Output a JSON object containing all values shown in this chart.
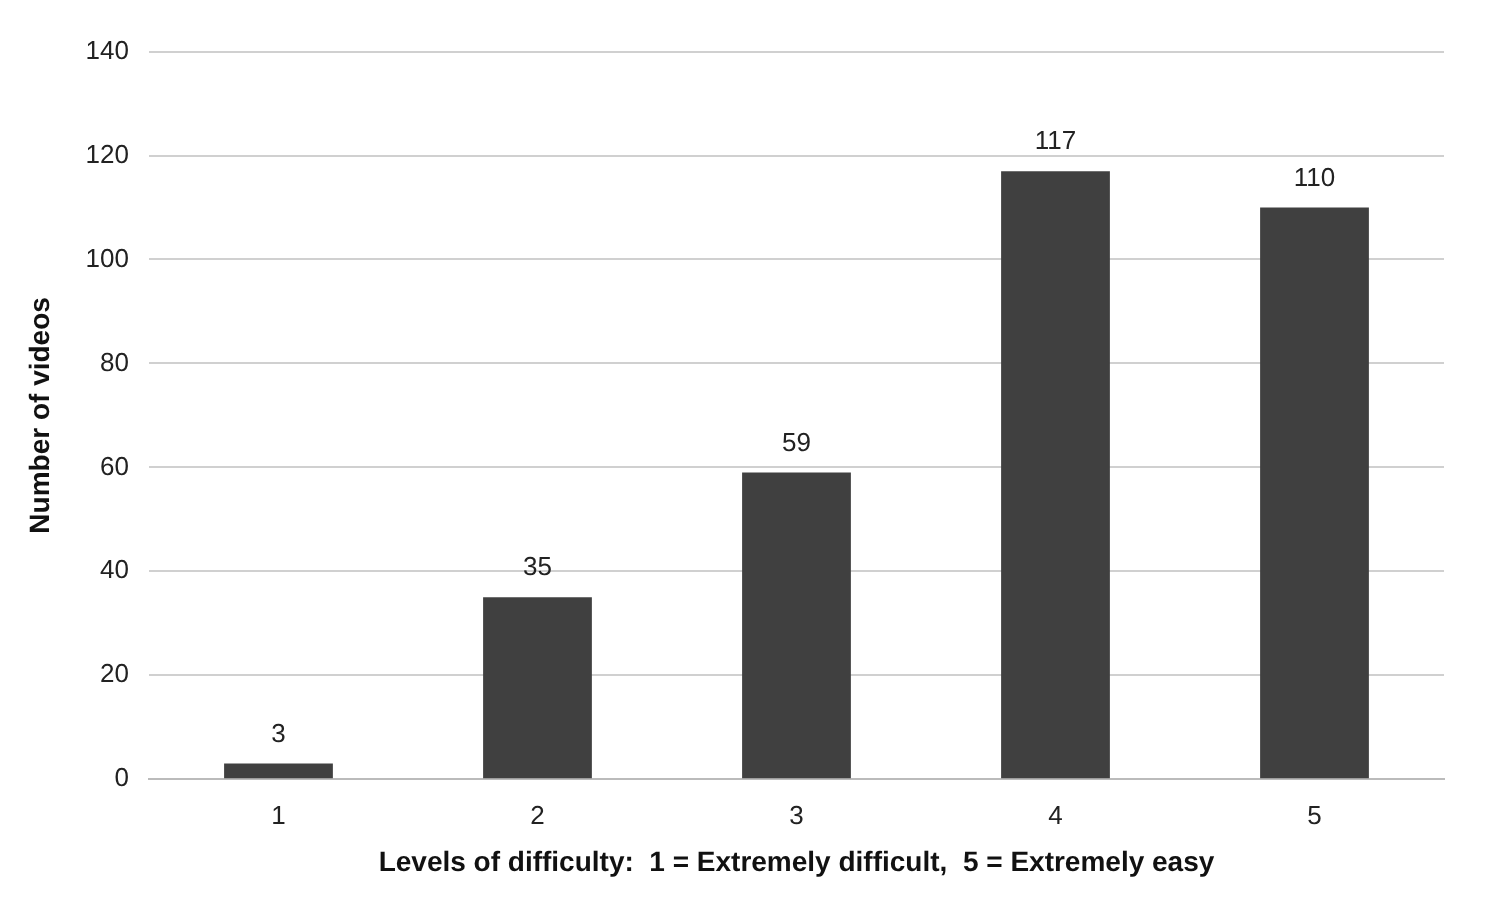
{
  "chart_data": {
    "type": "bar",
    "xlabel": "Levels of difficulty:  1 = Extremely difficult,  5 = Extremely easy",
    "ylabel": "Number of videos",
    "categories": [
      "1",
      "2",
      "3",
      "4",
      "5"
    ],
    "values": [
      3,
      35,
      59,
      117,
      110
    ],
    "color": "#404040",
    "ylim": [
      0,
      140
    ],
    "yticks": [
      0,
      20,
      40,
      60,
      80,
      100,
      120,
      140
    ],
    "grid": "y",
    "data_labels": true,
    "legend": false
  }
}
